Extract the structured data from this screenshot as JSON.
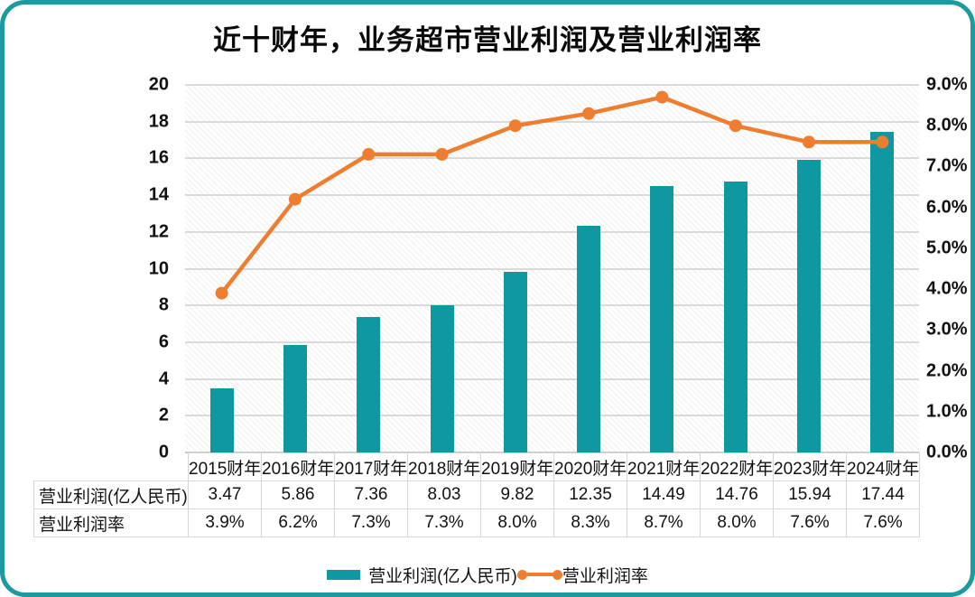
{
  "title": "近十财年，业务超市营业利润及营业利润率",
  "colors": {
    "teal": "#0F98A0",
    "orange": "#EE7D2F",
    "card_border": "#1C9AA0",
    "gridline": "#DADADA",
    "table_border": "#D6D6D6",
    "text": "#111111"
  },
  "chart_data": {
    "type": "combo-bar-line",
    "title": "近十财年，业务超市营业利润及营业利润率",
    "categories": [
      "2015财年",
      "2016财年",
      "2017财年",
      "2018财年",
      "2019财年",
      "2020财年",
      "2021财年",
      "2022财年",
      "2023财年",
      "2024财年"
    ],
    "series": [
      {
        "name": "营业利润(亿人民币)",
        "type": "bar",
        "axis": "left",
        "color": "#0F98A0",
        "values": [
          3.47,
          5.86,
          7.36,
          8.03,
          9.82,
          12.35,
          14.49,
          14.76,
          15.94,
          17.44
        ]
      },
      {
        "name": "营业利润率",
        "type": "line",
        "axis": "right",
        "color": "#EE7D2F",
        "unit": "%",
        "values": [
          3.9,
          6.2,
          7.3,
          7.3,
          8.0,
          8.3,
          8.7,
          8.0,
          7.6,
          7.6
        ]
      }
    ],
    "left_axis": {
      "min": 0,
      "max": 20,
      "step": 2,
      "ticks": [
        "20",
        "18",
        "16",
        "14",
        "12",
        "10",
        "8",
        "6",
        "4",
        "2",
        "0"
      ]
    },
    "right_axis": {
      "min": 0,
      "max": 9,
      "step": 1,
      "ticks": [
        "9.0%",
        "8.0%",
        "7.0%",
        "6.0%",
        "5.0%",
        "4.0%",
        "3.0%",
        "2.0%",
        "1.0%",
        "0.0%"
      ]
    },
    "grid": true,
    "plot_background": "diagonal-hatch",
    "legend_position": "bottom"
  },
  "table": {
    "corner_label": "",
    "rows": [
      {
        "label": "营业利润(亿人民币)",
        "values": [
          "3.47",
          "5.86",
          "7.36",
          "8.03",
          "9.82",
          "12.35",
          "14.49",
          "14.76",
          "15.94",
          "17.44"
        ]
      },
      {
        "label": "营业利润率",
        "values": [
          "3.9%",
          "6.2%",
          "7.3%",
          "7.3%",
          "8.0%",
          "8.3%",
          "8.7%",
          "8.0%",
          "7.6%",
          "7.6%"
        ]
      }
    ]
  },
  "legend": {
    "items": [
      {
        "label": "营业利润(亿人民币)",
        "marker": "bar",
        "color": "#0F98A0"
      },
      {
        "label": "营业利润率",
        "marker": "line",
        "color": "#EE7D2F"
      }
    ]
  }
}
